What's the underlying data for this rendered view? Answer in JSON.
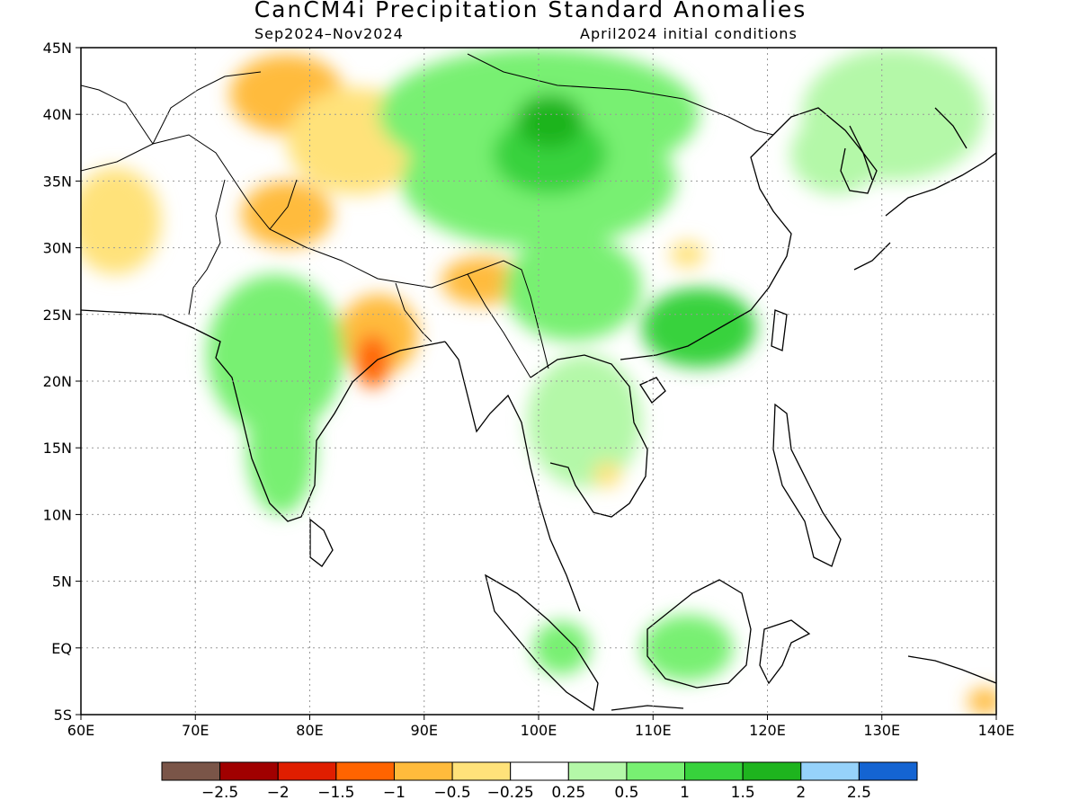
{
  "title": "CanCM4i Precipitation Standard Anomalies",
  "period": "Sep2024–Nov2024",
  "initial_conditions": "April2024 initial conditions",
  "map": {
    "lon_range": [
      60,
      140
    ],
    "lat_range": [
      -5,
      45
    ],
    "lon_ticks": [
      {
        "value": 60,
        "label": "60E"
      },
      {
        "value": 70,
        "label": "70E"
      },
      {
        "value": 80,
        "label": "80E"
      },
      {
        "value": 90,
        "label": "90E"
      },
      {
        "value": 100,
        "label": "100E"
      },
      {
        "value": 110,
        "label": "110E"
      },
      {
        "value": 120,
        "label": "120E"
      },
      {
        "value": 130,
        "label": "130E"
      },
      {
        "value": 140,
        "label": "140E"
      }
    ],
    "lat_ticks": [
      {
        "value": 45,
        "label": "45N"
      },
      {
        "value": 40,
        "label": "40N"
      },
      {
        "value": 35,
        "label": "35N"
      },
      {
        "value": 30,
        "label": "30N"
      },
      {
        "value": 25,
        "label": "25N"
      },
      {
        "value": 20,
        "label": "20N"
      },
      {
        "value": 15,
        "label": "15N"
      },
      {
        "value": 10,
        "label": "10N"
      },
      {
        "value": 5,
        "label": "5N"
      },
      {
        "value": 0,
        "label": "EQ"
      },
      {
        "value": -5,
        "label": "5S"
      }
    ],
    "gridlines": "dotted"
  },
  "colorbar": {
    "colors": [
      "#7a5548",
      "#a00000",
      "#e01e00",
      "#ff6400",
      "#ffbb3c",
      "#ffe27a",
      "#ffffff",
      "#b4f8a8",
      "#78f072",
      "#37d23c",
      "#1eb41e",
      "#96d2fa",
      "#1464d2"
    ],
    "labels": [
      "−2.5",
      "−2",
      "−1.5",
      "−1",
      "−0.5",
      "−0.25",
      "0.25",
      "0.5",
      "1",
      "1.5",
      "2",
      "2.5"
    ]
  },
  "anomaly_regions": [
    {
      "name": "kazakhstan-dry",
      "lon": 78,
      "lat": 41.5,
      "rx": 5,
      "ry": 3,
      "color": "#ffbb3c"
    },
    {
      "name": "tarim-dry",
      "lon": 84,
      "lat": 38,
      "rx": 6,
      "ry": 4,
      "color": "#ffe27a"
    },
    {
      "name": "kashmir-dry",
      "lon": 78,
      "lat": 32.5,
      "rx": 4,
      "ry": 2.5,
      "color": "#ffbb3c"
    },
    {
      "name": "iran-dry",
      "lon": 63,
      "lat": 32,
      "rx": 4,
      "ry": 4,
      "color": "#ffe27a"
    },
    {
      "name": "bihar-dry",
      "lon": 86,
      "lat": 23.5,
      "rx": 3.5,
      "ry": 3,
      "color": "#ffbb3c"
    },
    {
      "name": "odisha-dry",
      "lon": 85.5,
      "lat": 21.5,
      "rx": 1.5,
      "ry": 2,
      "color": "#ff6400"
    },
    {
      "name": "assam-dry",
      "lon": 95,
      "lat": 27.5,
      "rx": 3.5,
      "ry": 1.8,
      "color": "#ffbb3c"
    },
    {
      "name": "mongolia-wet",
      "lon": 100,
      "lat": 40,
      "rx": 14,
      "ry": 5,
      "color": "#78f072"
    },
    {
      "name": "tibet-wet",
      "lon": 100,
      "lat": 35,
      "rx": 12,
      "ry": 5,
      "color": "#78f072"
    },
    {
      "name": "qinghai-wet",
      "lon": 101,
      "lat": 37,
      "rx": 5,
      "ry": 3,
      "color": "#37d23c"
    },
    {
      "name": "gansu-wet",
      "lon": 101,
      "lat": 39.5,
      "rx": 3,
      "ry": 2,
      "color": "#1eb41e"
    },
    {
      "name": "yunnan-wet",
      "lon": 103,
      "lat": 27,
      "rx": 6,
      "ry": 4,
      "color": "#78f072"
    },
    {
      "name": "guangdong-wet",
      "lon": 114,
      "lat": 24,
      "rx": 5,
      "ry": 3,
      "color": "#37d23c"
    },
    {
      "name": "india-west-wet",
      "lon": 77,
      "lat": 22,
      "rx": 6,
      "ry": 6,
      "color": "#78f072"
    },
    {
      "name": "india-south-wet",
      "lon": 77.5,
      "lat": 15,
      "rx": 3,
      "ry": 5,
      "color": "#78f072"
    },
    {
      "name": "indochina-wet",
      "lon": 104,
      "lat": 17,
      "rx": 5,
      "ry": 5,
      "color": "#b4f8a8"
    },
    {
      "name": "borneo-wet",
      "lon": 113,
      "lat": 0,
      "rx": 4,
      "ry": 2.5,
      "color": "#78f072"
    },
    {
      "name": "sumatra-wet",
      "lon": 102,
      "lat": 0,
      "rx": 2.5,
      "ry": 2,
      "color": "#78f072"
    },
    {
      "name": "japan-wet",
      "lon": 131,
      "lat": 40,
      "rx": 8,
      "ry": 5,
      "color": "#b4f8a8"
    },
    {
      "name": "korea-wet",
      "lon": 126,
      "lat": 37,
      "rx": 4,
      "ry": 3,
      "color": "#b4f8a8"
    },
    {
      "name": "cambodia-dry",
      "lon": 106,
      "lat": 13,
      "rx": 1.2,
      "ry": 1,
      "color": "#ffe27a"
    },
    {
      "name": "changjiang-dry",
      "lon": 113,
      "lat": 29.5,
      "rx": 1.5,
      "ry": 1,
      "color": "#ffe27a"
    },
    {
      "name": "papua-dry",
      "lon": 139,
      "lat": -4,
      "rx": 1.5,
      "ry": 1,
      "color": "#ffbb3c"
    }
  ]
}
